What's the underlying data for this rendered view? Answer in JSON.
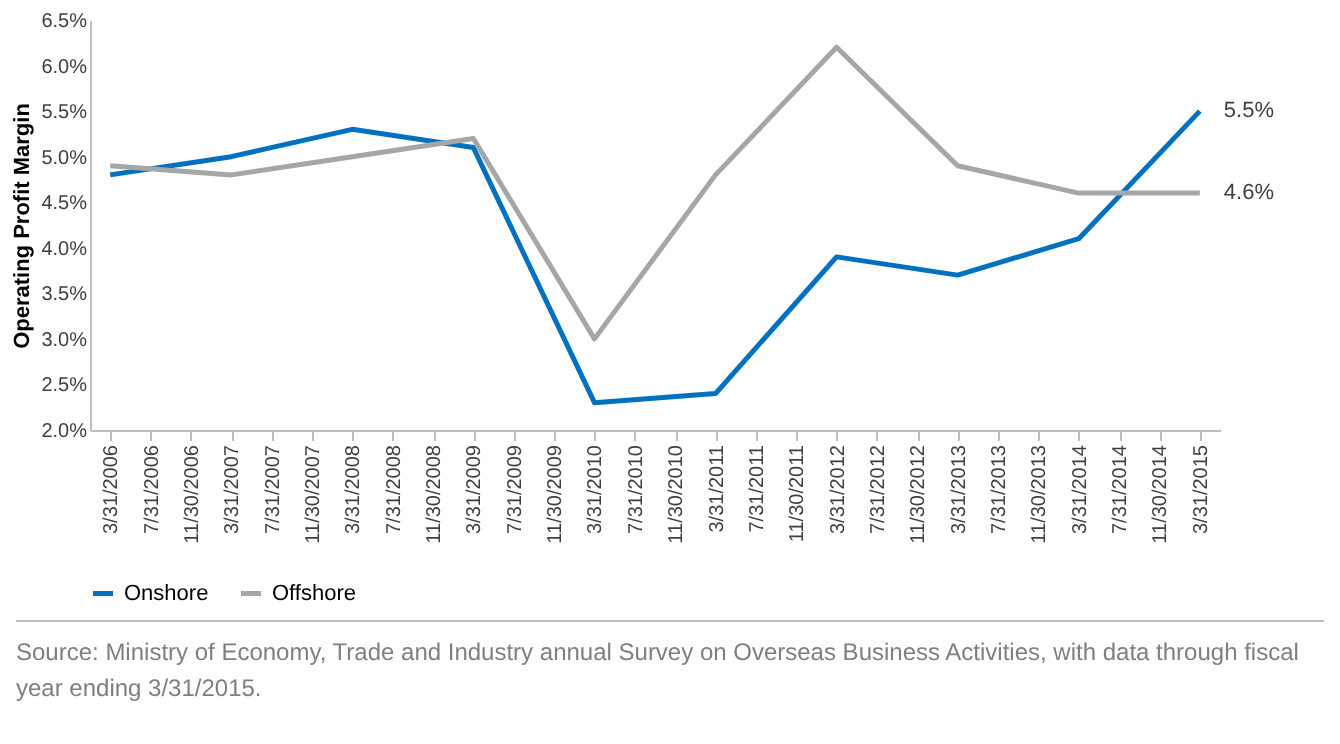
{
  "chart_data": {
    "type": "line",
    "categories": [
      "3/31/2006",
      "7/31/2006",
      "11/30/2006",
      "3/31/2007",
      "7/31/2007",
      "11/30/2007",
      "3/31/2008",
      "7/31/2008",
      "11/30/2008",
      "3/31/2009",
      "7/31/2009",
      "11/30/2009",
      "3/31/2010",
      "7/31/2010",
      "11/30/2010",
      "3/31/2011",
      "7/31/2011",
      "11/30/2011",
      "3/31/2012",
      "7/31/2012",
      "11/30/2012",
      "3/31/2013",
      "7/31/2013",
      "11/30/2013",
      "3/31/2014",
      "7/31/2014",
      "11/30/2014",
      "3/31/2015"
    ],
    "series": [
      {
        "name": "Onshore",
        "color": "#0070c0",
        "values": [
          4.8,
          null,
          null,
          5.0,
          null,
          null,
          5.3,
          null,
          null,
          5.1,
          null,
          null,
          2.3,
          null,
          null,
          2.4,
          null,
          null,
          3.9,
          null,
          null,
          3.7,
          null,
          null,
          4.1,
          null,
          null,
          5.5
        ],
        "value_labels": [
          null,
          null,
          null,
          null,
          null,
          null,
          null,
          null,
          null,
          null,
          null,
          null,
          null,
          null,
          null,
          null,
          null,
          null,
          null,
          null,
          null,
          null,
          null,
          null,
          null,
          null,
          null,
          "5.5%"
        ]
      },
      {
        "name": "Offshore",
        "color": "#a6a6a6",
        "values": [
          4.9,
          null,
          null,
          4.8,
          null,
          null,
          5.0,
          null,
          null,
          5.2,
          null,
          null,
          3.0,
          null,
          null,
          4.8,
          null,
          null,
          6.2,
          null,
          null,
          4.9,
          null,
          null,
          4.6,
          null,
          null,
          4.6
        ],
        "value_labels": [
          null,
          null,
          null,
          null,
          null,
          null,
          null,
          null,
          null,
          null,
          null,
          null,
          null,
          null,
          null,
          null,
          null,
          null,
          null,
          null,
          null,
          null,
          null,
          null,
          null,
          null,
          null,
          "4.6%"
        ]
      }
    ],
    "ylabel": "Operating Profit Margin",
    "ylim": [
      2.0,
      6.5
    ],
    "yticks": [
      {
        "value": 2.0,
        "label": "2.0%"
      },
      {
        "value": 2.5,
        "label": "2.5%"
      },
      {
        "value": 3.0,
        "label": "3.0%"
      },
      {
        "value": 3.5,
        "label": "3.5%"
      },
      {
        "value": 4.0,
        "label": "4.0%"
      },
      {
        "value": 4.5,
        "label": "4.5%"
      },
      {
        "value": 5.0,
        "label": "5.0%"
      },
      {
        "value": 5.5,
        "label": "5.5%"
      },
      {
        "value": 6.0,
        "label": "6.0%"
      },
      {
        "value": 6.5,
        "label": "6.5%"
      }
    ],
    "grid": false,
    "legend": "bottom",
    "marker": "none",
    "line_style": "solid",
    "annotations": [
      "Source: Ministry of Economy, Trade and Industry annual Survey on Overseas Business Activities, with data through fiscal year ending 3/31/2015."
    ]
  }
}
